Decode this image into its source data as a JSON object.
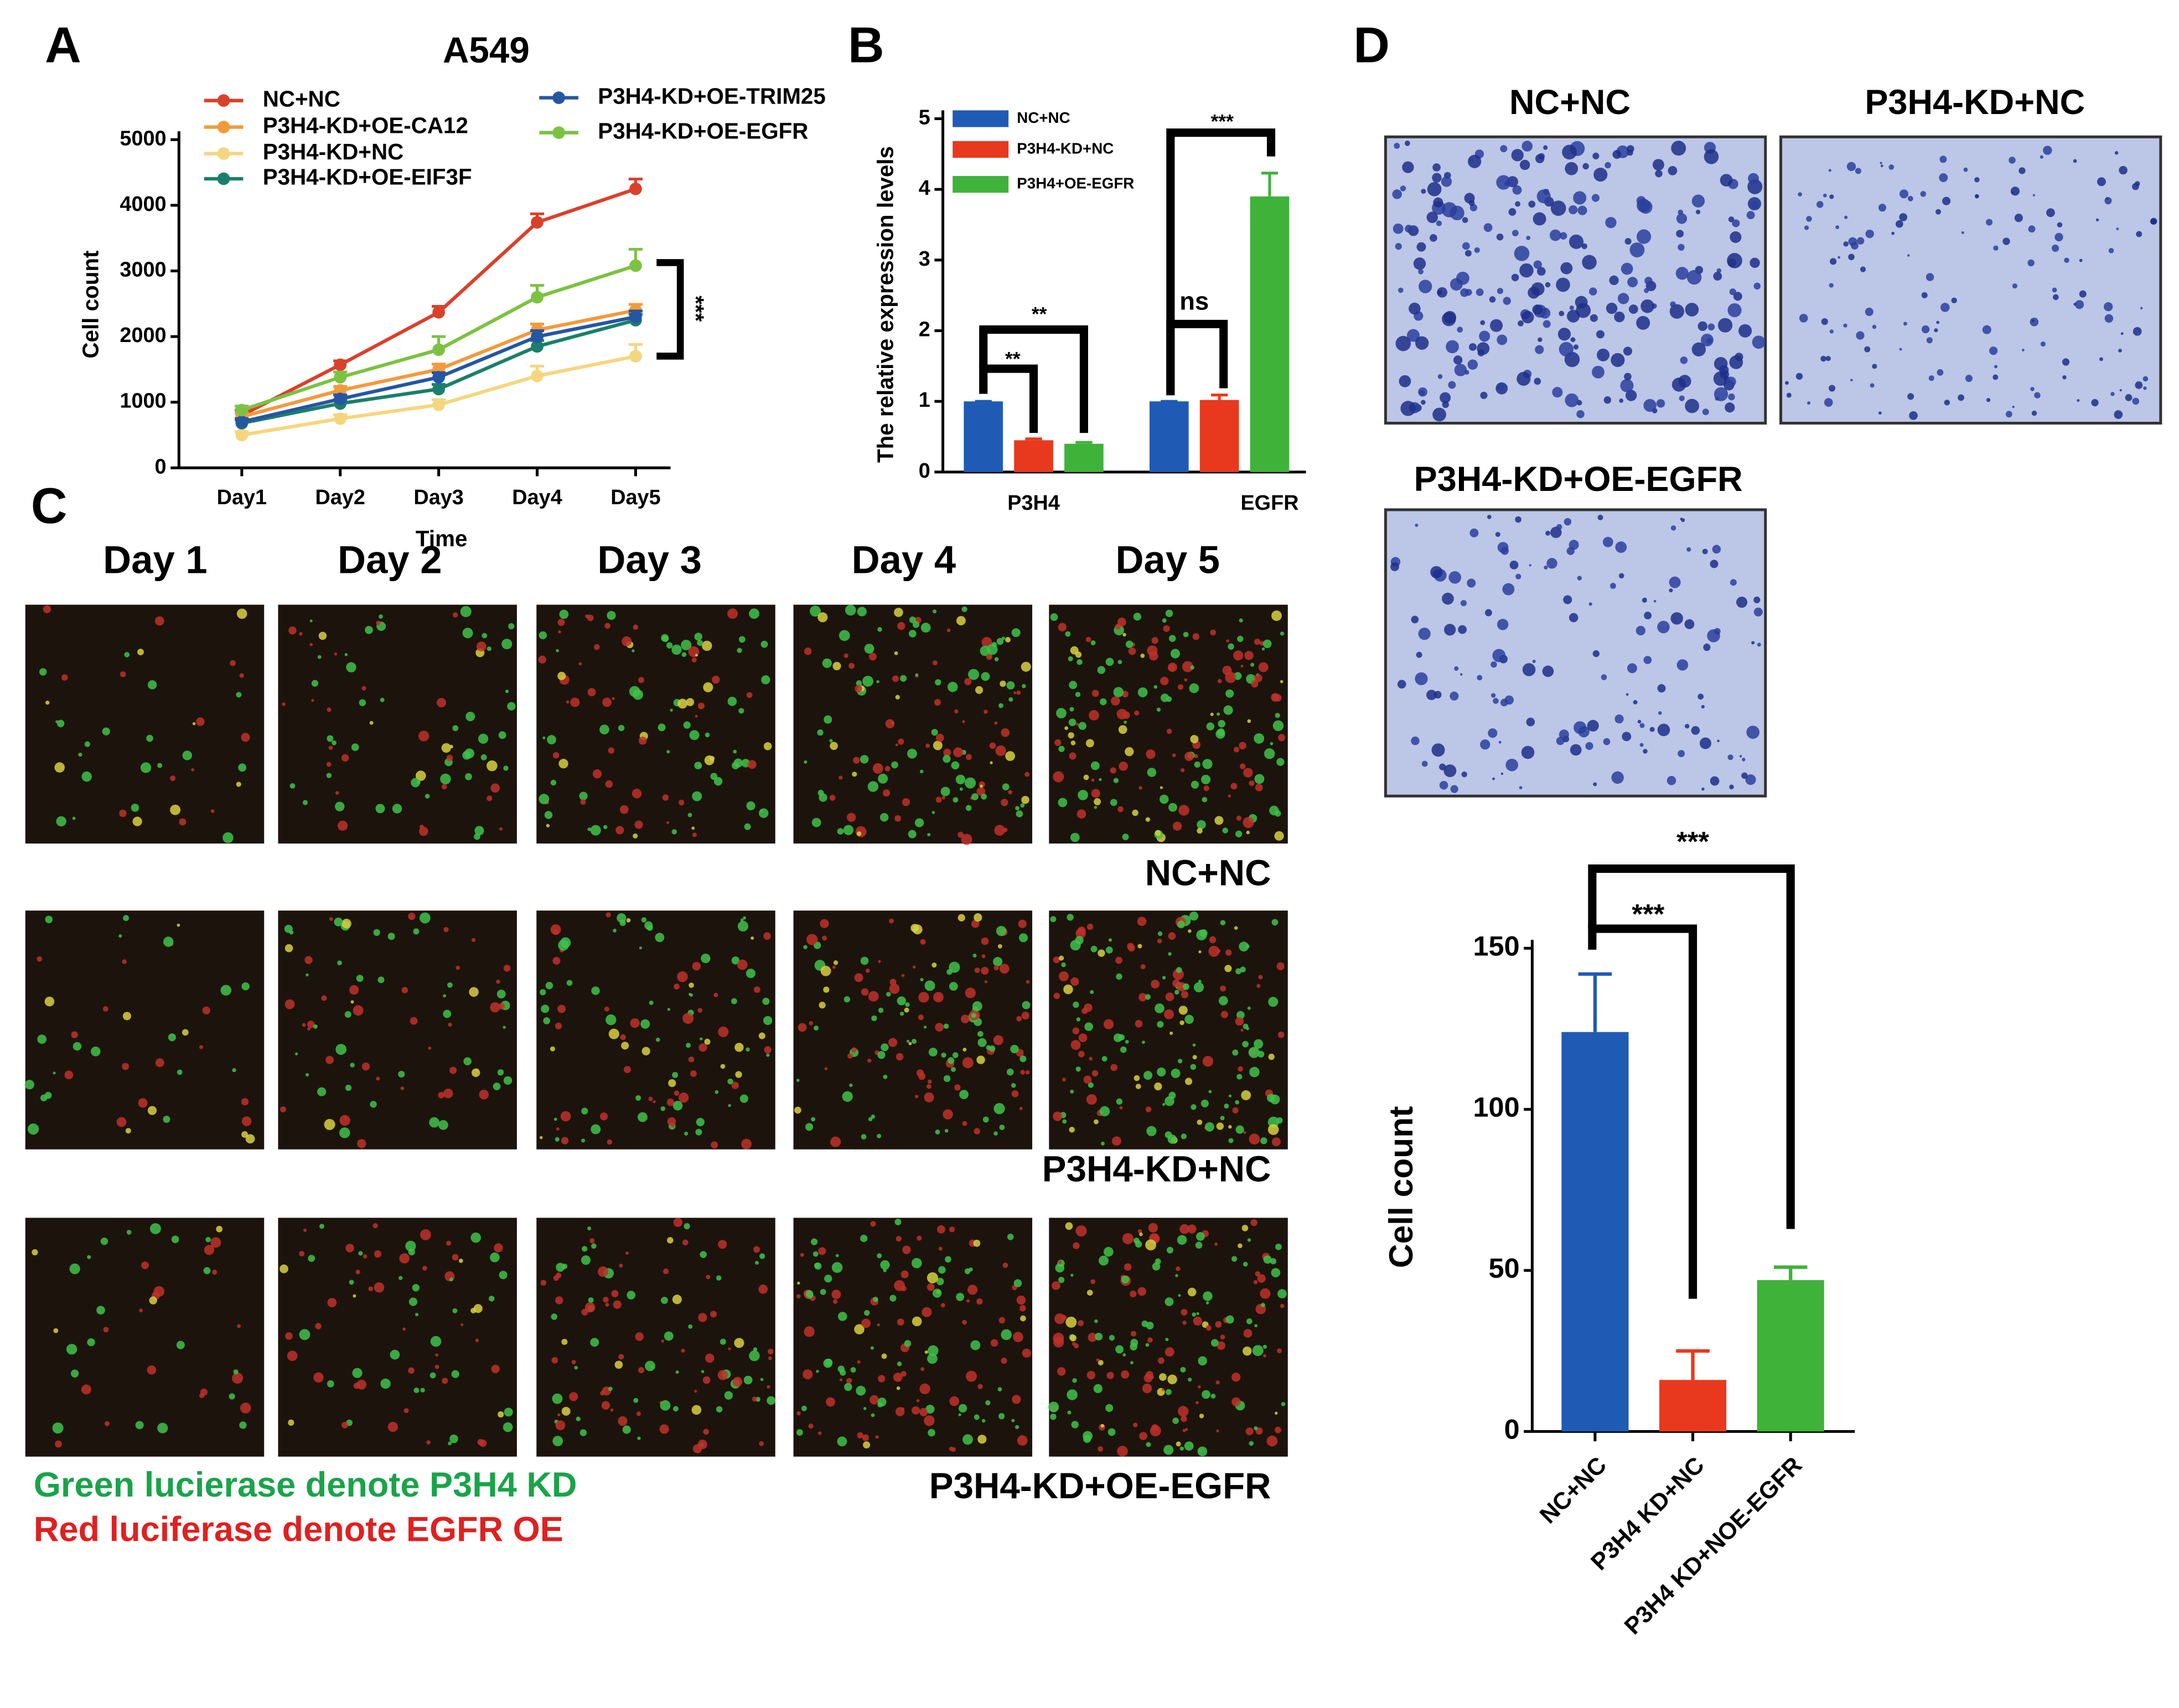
{
  "panels": {
    "labels": [
      "A",
      "B",
      "C",
      "D"
    ]
  },
  "chart_data": [
    {
      "type": "line",
      "title": "A549",
      "x_label": "Time",
      "y_label": "Cell count",
      "categories": [
        "Day1",
        "Day2",
        "Day3",
        "Day4",
        "Day5"
      ],
      "ylim": [
        0,
        5000
      ],
      "yticks": [
        0,
        1000,
        2000,
        3000,
        4000,
        5000
      ],
      "series": [
        {
          "name": "NC+NC",
          "color": "#d9412b",
          "values": [
            800,
            1570,
            2370,
            3740,
            4250
          ],
          "errors": [
            80,
            60,
            90,
            130,
            150
          ]
        },
        {
          "name": "P3H4-KD+OE-CA12",
          "color": "#f39a3c",
          "values": [
            780,
            1180,
            1500,
            2100,
            2400
          ],
          "errors": [
            60,
            60,
            80,
            90,
            90
          ]
        },
        {
          "name": "P3H4-KD+NC",
          "color": "#f5d680",
          "values": [
            500,
            750,
            960,
            1400,
            1700
          ],
          "errors": [
            50,
            60,
            80,
            150,
            180
          ]
        },
        {
          "name": "P3H4-KD+OE-EIF3F",
          "color": "#1a7f6a",
          "values": [
            680,
            980,
            1200,
            1850,
            2250
          ],
          "errors": [
            50,
            60,
            70,
            90,
            90
          ]
        },
        {
          "name": "P3H4-KD+OE-TRIM25",
          "color": "#2456a4",
          "values": [
            700,
            1050,
            1380,
            2000,
            2300
          ],
          "errors": [
            50,
            60,
            70,
            90,
            90
          ]
        },
        {
          "name": "P3H4-KD+OE-EGFR",
          "color": "#7cc242",
          "values": [
            880,
            1380,
            1800,
            2600,
            3080
          ],
          "errors": [
            60,
            80,
            200,
            180,
            250
          ]
        }
      ],
      "annotations": [
        "***"
      ]
    },
    {
      "type": "grouped_bar",
      "y_label": "The relative expression levels",
      "categories": [
        "P3H4",
        "EGFR"
      ],
      "ylim": [
        0,
        5
      ],
      "yticks": [
        0,
        1,
        2,
        3,
        4,
        5
      ],
      "series": [
        {
          "name": "NC+NC",
          "color": "#1f5bb5",
          "values": [
            1,
            1
          ],
          "errors": [
            0,
            0
          ]
        },
        {
          "name": "P3H4-KD+NC",
          "color": "#e8391e",
          "values": [
            0.45,
            1.02
          ],
          "errors": [
            0.02,
            0.07
          ]
        },
        {
          "name": "P3H4+OE-EGFR",
          "color": "#3fb23a",
          "values": [
            0.4,
            3.9
          ],
          "errors": [
            0.02,
            0.33
          ]
        }
      ],
      "annotations": [
        "**",
        "**",
        "ns",
        "***"
      ]
    },
    {
      "type": "bar",
      "y_label": "Cell count",
      "categories": [
        "NC+NC",
        "P3H4 KD+NC",
        "P3H4 KD+NOE-EGFR"
      ],
      "values": [
        124,
        16,
        47
      ],
      "errors": [
        18,
        9,
        4
      ],
      "colors": [
        "#1f5bb5",
        "#e8391e",
        "#3fb23a"
      ],
      "ylim": [
        0,
        150
      ],
      "yticks": [
        0,
        50,
        100,
        150
      ],
      "annotations": [
        "***",
        "***"
      ]
    }
  ],
  "micrographs": {
    "days": [
      "Day 1",
      "Day 2",
      "Day 3",
      "Day 4",
      "Day 5"
    ],
    "rows": [
      "NC+NC",
      "P3H4-KD+NC",
      "P3H4-KD+OE-EGFR"
    ],
    "notes": [
      "Green lucierase denote P3H4 KD",
      "Red luciferase denote EGFR OE"
    ]
  },
  "transwell": {
    "labels": [
      "NC+NC",
      "P3H4-KD+NC",
      "P3H4-KD+OE-EGFR"
    ]
  }
}
